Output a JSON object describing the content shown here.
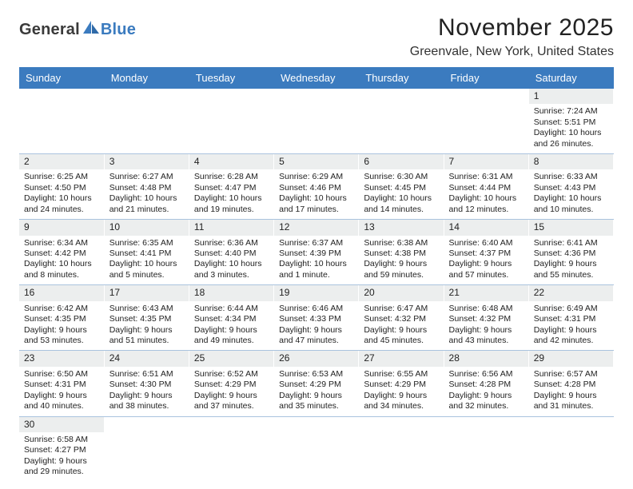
{
  "logo": {
    "part1": "General",
    "part2": "Blue",
    "color1": "#3a3a3a",
    "color2": "#3b7bbf"
  },
  "title": "November 2025",
  "subtitle": "Greenvale, New York, United States",
  "header_bg": "#3b7bbf",
  "row_border": "#aac3de",
  "daynum_bg": "#eceeee",
  "weekdays": [
    "Sunday",
    "Monday",
    "Tuesday",
    "Wednesday",
    "Thursday",
    "Friday",
    "Saturday"
  ],
  "weeks": [
    [
      {
        "n": "",
        "sunrise": "",
        "sunset": "",
        "daylight": ""
      },
      {
        "n": "",
        "sunrise": "",
        "sunset": "",
        "daylight": ""
      },
      {
        "n": "",
        "sunrise": "",
        "sunset": "",
        "daylight": ""
      },
      {
        "n": "",
        "sunrise": "",
        "sunset": "",
        "daylight": ""
      },
      {
        "n": "",
        "sunrise": "",
        "sunset": "",
        "daylight": ""
      },
      {
        "n": "",
        "sunrise": "",
        "sunset": "",
        "daylight": ""
      },
      {
        "n": "1",
        "sunrise": "Sunrise: 7:24 AM",
        "sunset": "Sunset: 5:51 PM",
        "daylight": "Daylight: 10 hours and 26 minutes."
      }
    ],
    [
      {
        "n": "2",
        "sunrise": "Sunrise: 6:25 AM",
        "sunset": "Sunset: 4:50 PM",
        "daylight": "Daylight: 10 hours and 24 minutes."
      },
      {
        "n": "3",
        "sunrise": "Sunrise: 6:27 AM",
        "sunset": "Sunset: 4:48 PM",
        "daylight": "Daylight: 10 hours and 21 minutes."
      },
      {
        "n": "4",
        "sunrise": "Sunrise: 6:28 AM",
        "sunset": "Sunset: 4:47 PM",
        "daylight": "Daylight: 10 hours and 19 minutes."
      },
      {
        "n": "5",
        "sunrise": "Sunrise: 6:29 AM",
        "sunset": "Sunset: 4:46 PM",
        "daylight": "Daylight: 10 hours and 17 minutes."
      },
      {
        "n": "6",
        "sunrise": "Sunrise: 6:30 AM",
        "sunset": "Sunset: 4:45 PM",
        "daylight": "Daylight: 10 hours and 14 minutes."
      },
      {
        "n": "7",
        "sunrise": "Sunrise: 6:31 AM",
        "sunset": "Sunset: 4:44 PM",
        "daylight": "Daylight: 10 hours and 12 minutes."
      },
      {
        "n": "8",
        "sunrise": "Sunrise: 6:33 AM",
        "sunset": "Sunset: 4:43 PM",
        "daylight": "Daylight: 10 hours and 10 minutes."
      }
    ],
    [
      {
        "n": "9",
        "sunrise": "Sunrise: 6:34 AM",
        "sunset": "Sunset: 4:42 PM",
        "daylight": "Daylight: 10 hours and 8 minutes."
      },
      {
        "n": "10",
        "sunrise": "Sunrise: 6:35 AM",
        "sunset": "Sunset: 4:41 PM",
        "daylight": "Daylight: 10 hours and 5 minutes."
      },
      {
        "n": "11",
        "sunrise": "Sunrise: 6:36 AM",
        "sunset": "Sunset: 4:40 PM",
        "daylight": "Daylight: 10 hours and 3 minutes."
      },
      {
        "n": "12",
        "sunrise": "Sunrise: 6:37 AM",
        "sunset": "Sunset: 4:39 PM",
        "daylight": "Daylight: 10 hours and 1 minute."
      },
      {
        "n": "13",
        "sunrise": "Sunrise: 6:38 AM",
        "sunset": "Sunset: 4:38 PM",
        "daylight": "Daylight: 9 hours and 59 minutes."
      },
      {
        "n": "14",
        "sunrise": "Sunrise: 6:40 AM",
        "sunset": "Sunset: 4:37 PM",
        "daylight": "Daylight: 9 hours and 57 minutes."
      },
      {
        "n": "15",
        "sunrise": "Sunrise: 6:41 AM",
        "sunset": "Sunset: 4:36 PM",
        "daylight": "Daylight: 9 hours and 55 minutes."
      }
    ],
    [
      {
        "n": "16",
        "sunrise": "Sunrise: 6:42 AM",
        "sunset": "Sunset: 4:35 PM",
        "daylight": "Daylight: 9 hours and 53 minutes."
      },
      {
        "n": "17",
        "sunrise": "Sunrise: 6:43 AM",
        "sunset": "Sunset: 4:35 PM",
        "daylight": "Daylight: 9 hours and 51 minutes."
      },
      {
        "n": "18",
        "sunrise": "Sunrise: 6:44 AM",
        "sunset": "Sunset: 4:34 PM",
        "daylight": "Daylight: 9 hours and 49 minutes."
      },
      {
        "n": "19",
        "sunrise": "Sunrise: 6:46 AM",
        "sunset": "Sunset: 4:33 PM",
        "daylight": "Daylight: 9 hours and 47 minutes."
      },
      {
        "n": "20",
        "sunrise": "Sunrise: 6:47 AM",
        "sunset": "Sunset: 4:32 PM",
        "daylight": "Daylight: 9 hours and 45 minutes."
      },
      {
        "n": "21",
        "sunrise": "Sunrise: 6:48 AM",
        "sunset": "Sunset: 4:32 PM",
        "daylight": "Daylight: 9 hours and 43 minutes."
      },
      {
        "n": "22",
        "sunrise": "Sunrise: 6:49 AM",
        "sunset": "Sunset: 4:31 PM",
        "daylight": "Daylight: 9 hours and 42 minutes."
      }
    ],
    [
      {
        "n": "23",
        "sunrise": "Sunrise: 6:50 AM",
        "sunset": "Sunset: 4:31 PM",
        "daylight": "Daylight: 9 hours and 40 minutes."
      },
      {
        "n": "24",
        "sunrise": "Sunrise: 6:51 AM",
        "sunset": "Sunset: 4:30 PM",
        "daylight": "Daylight: 9 hours and 38 minutes."
      },
      {
        "n": "25",
        "sunrise": "Sunrise: 6:52 AM",
        "sunset": "Sunset: 4:29 PM",
        "daylight": "Daylight: 9 hours and 37 minutes."
      },
      {
        "n": "26",
        "sunrise": "Sunrise: 6:53 AM",
        "sunset": "Sunset: 4:29 PM",
        "daylight": "Daylight: 9 hours and 35 minutes."
      },
      {
        "n": "27",
        "sunrise": "Sunrise: 6:55 AM",
        "sunset": "Sunset: 4:29 PM",
        "daylight": "Daylight: 9 hours and 34 minutes."
      },
      {
        "n": "28",
        "sunrise": "Sunrise: 6:56 AM",
        "sunset": "Sunset: 4:28 PM",
        "daylight": "Daylight: 9 hours and 32 minutes."
      },
      {
        "n": "29",
        "sunrise": "Sunrise: 6:57 AM",
        "sunset": "Sunset: 4:28 PM",
        "daylight": "Daylight: 9 hours and 31 minutes."
      }
    ],
    [
      {
        "n": "30",
        "sunrise": "Sunrise: 6:58 AM",
        "sunset": "Sunset: 4:27 PM",
        "daylight": "Daylight: 9 hours and 29 minutes."
      },
      {
        "n": "",
        "sunrise": "",
        "sunset": "",
        "daylight": ""
      },
      {
        "n": "",
        "sunrise": "",
        "sunset": "",
        "daylight": ""
      },
      {
        "n": "",
        "sunrise": "",
        "sunset": "",
        "daylight": ""
      },
      {
        "n": "",
        "sunrise": "",
        "sunset": "",
        "daylight": ""
      },
      {
        "n": "",
        "sunrise": "",
        "sunset": "",
        "daylight": ""
      },
      {
        "n": "",
        "sunrise": "",
        "sunset": "",
        "daylight": ""
      }
    ]
  ]
}
